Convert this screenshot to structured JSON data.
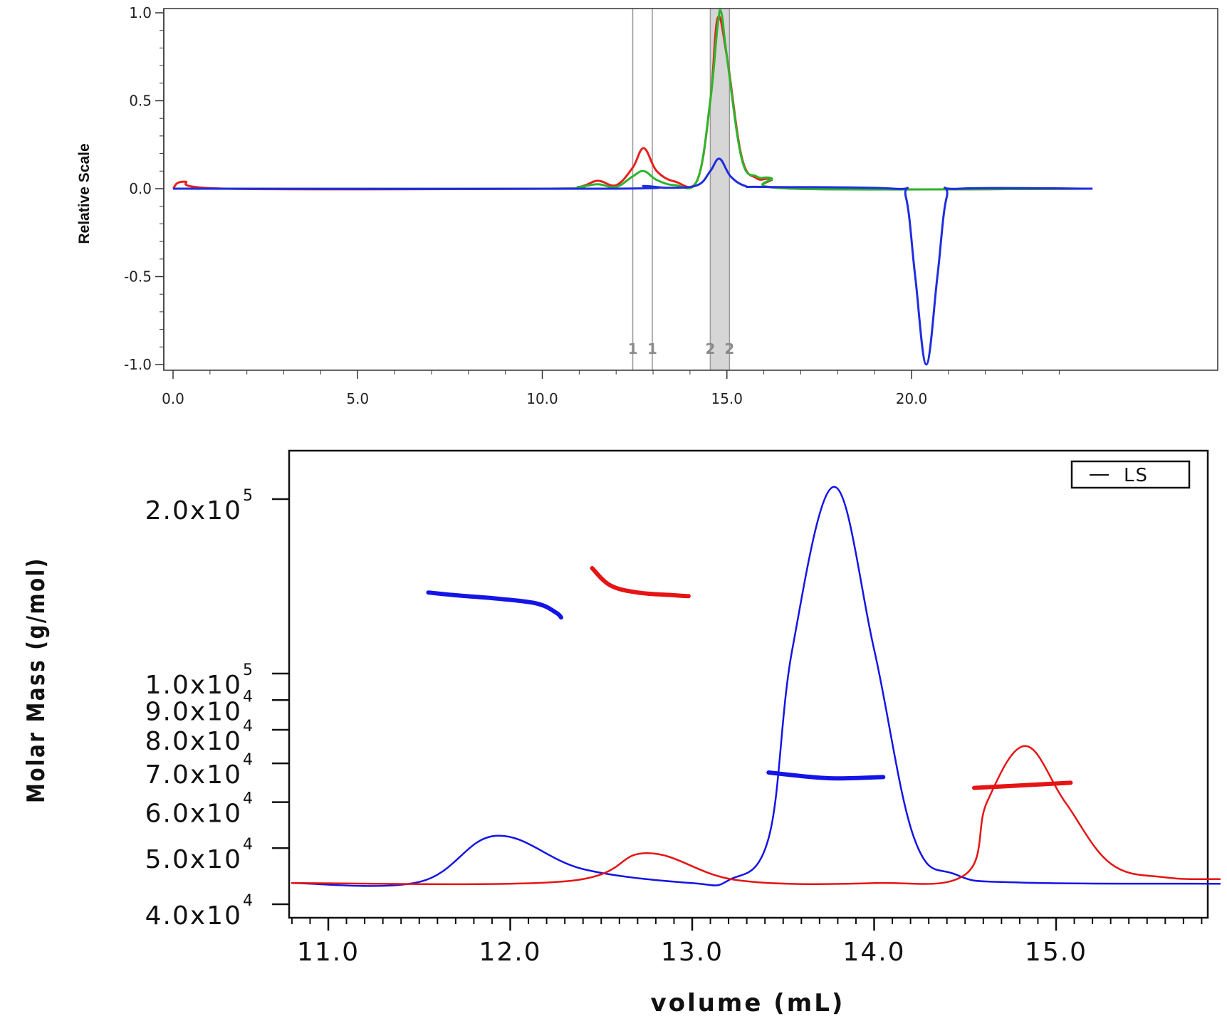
{
  "chart_data": [
    {
      "type": "line",
      "xlabel": "volume (mL)",
      "ylabel": "Relative Scale",
      "xlim": [
        -0.3,
        24.9
      ],
      "ylim": [
        -1.0,
        1.0
      ],
      "x_ticks": [
        0.0,
        5.0,
        10.0,
        15.0,
        20.0
      ],
      "x_tick_labels": [
        "0.0",
        "5.0",
        "10.0",
        "15.0",
        "20.0"
      ],
      "y_ticks": [
        1.0,
        0.5,
        0.0,
        -0.5,
        -1.0
      ],
      "y_tick_labels": [
        "1.0",
        "0.5",
        "0.0",
        "-0.5",
        "-1.0"
      ],
      "markers": [
        {
          "label": "1",
          "x": 12.45
        },
        {
          "label": "1",
          "x": 12.98
        },
        {
          "label": "2",
          "x": 14.55
        },
        {
          "label": "2",
          "x": 15.07
        }
      ],
      "shaded_region": [
        14.55,
        15.07
      ],
      "series": [
        {
          "color": "#e8201c",
          "x": [
            0,
            0.3,
            1.5,
            10,
            11,
            11.5,
            12,
            12.45,
            12.75,
            13.1,
            13.6,
            14.2,
            14.55,
            14.75,
            15.0,
            15.4,
            15.8,
            16.2,
            16.8,
            24.9
          ],
          "y": [
            0.0,
            0.04,
            0.0,
            0.0,
            0.01,
            0.045,
            0.02,
            0.12,
            0.23,
            0.1,
            0.04,
            0.05,
            0.5,
            0.97,
            0.75,
            0.18,
            0.06,
            0.055,
            0.0,
            0.0
          ]
        },
        {
          "color": "#2db52d",
          "x": [
            0,
            10,
            11,
            11.5,
            12,
            12.45,
            12.75,
            13.1,
            13.6,
            14.2,
            14.55,
            14.75,
            14.85,
            15.0,
            15.4,
            15.8,
            16.2,
            16.8,
            24.9
          ],
          "y": [
            0.0,
            0.0,
            0.01,
            0.025,
            0.01,
            0.07,
            0.1,
            0.05,
            0.02,
            0.05,
            0.5,
            0.93,
            1.0,
            0.75,
            0.17,
            0.07,
            0.06,
            0.0,
            0.0
          ]
        },
        {
          "color": "#1f2de0",
          "x": [
            0,
            12,
            12.75,
            13.4,
            14.2,
            14.55,
            14.8,
            15.1,
            15.5,
            16,
            19.5,
            19.85,
            20.1,
            20.4,
            20.7,
            20.95,
            21.3,
            24.9
          ],
          "y": [
            0.0,
            0.0,
            0.015,
            0.005,
            0.02,
            0.1,
            0.17,
            0.07,
            0.015,
            0.01,
            0.0,
            -0.05,
            -0.5,
            -1.0,
            -0.5,
            -0.05,
            0.0,
            0.0
          ]
        }
      ]
    },
    {
      "type": "line",
      "xlabel": "volume (mL)",
      "ylabel": "Molar Mass (g/mol)",
      "yscale": "log",
      "xlim": [
        10.8,
        15.9
      ],
      "ylim": [
        38000,
        240000
      ],
      "x_ticks": [
        11.0,
        12.0,
        13.0,
        14.0,
        15.0
      ],
      "x_tick_labels": [
        "11.0",
        "12.0",
        "13.0",
        "14.0",
        "15.0"
      ],
      "y_ticks": [
        {
          "value": 200000,
          "mantissa": "2.0x10",
          "exponent": "5"
        },
        {
          "value": 100000,
          "mantissa": "1.0x10",
          "exponent": "5"
        },
        {
          "value": 90000,
          "mantissa": "9.0x10",
          "exponent": "4"
        },
        {
          "value": 80000,
          "mantissa": "8.0x10",
          "exponent": "4"
        },
        {
          "value": 70000,
          "mantissa": "7.0x10",
          "exponent": "4"
        },
        {
          "value": 60000,
          "mantissa": "6.0x10",
          "exponent": "4"
        },
        {
          "value": 50000,
          "mantissa": "5.0x10",
          "exponent": "4"
        },
        {
          "value": 40000,
          "mantissa": "4.0x10",
          "exponent": "4"
        }
      ],
      "legend": {
        "entries": [
          "LS"
        ],
        "placement": "top-right"
      },
      "series": [
        {
          "color": "#1414e6",
          "kind": "signal",
          "x": [
            10.8,
            11.5,
            11.92,
            12.4,
            13.0,
            13.2,
            13.42,
            13.55,
            13.78,
            14.0,
            14.22,
            14.45,
            14.8,
            15.9
          ],
          "y": [
            43500,
            43700,
            52500,
            46000,
            43500,
            44000,
            52000,
            110000,
            210000,
            110000,
            52000,
            45000,
            43600,
            43400
          ]
        },
        {
          "color": "#e61414",
          "kind": "signal",
          "x": [
            10.8,
            12.3,
            12.75,
            13.25,
            14.0,
            14.5,
            14.62,
            14.83,
            15.05,
            15.3,
            15.6,
            15.9
          ],
          "y": [
            43500,
            43800,
            49000,
            44000,
            43500,
            45000,
            60000,
            75000,
            60000,
            47000,
            44500,
            44200
          ]
        },
        {
          "color": "#1414e6",
          "kind": "molar-mass",
          "x": [
            11.55,
            11.7,
            11.95,
            12.15,
            12.25,
            12.28
          ],
          "y": [
            138000,
            136500,
            134500,
            132000,
            127500,
            125000
          ]
        },
        {
          "color": "#e61414",
          "kind": "molar-mass",
          "x": [
            12.45,
            12.55,
            12.7,
            12.9,
            12.98
          ],
          "y": [
            152000,
            142000,
            138000,
            136500,
            136000
          ]
        },
        {
          "color": "#1414e6",
          "kind": "molar-mass",
          "x": [
            13.42,
            13.75,
            14.05
          ],
          "y": [
            67500,
            66000,
            66300
          ]
        },
        {
          "color": "#e61414",
          "kind": "molar-mass",
          "x": [
            14.55,
            15.08
          ],
          "y": [
            63500,
            64800
          ]
        }
      ]
    }
  ]
}
